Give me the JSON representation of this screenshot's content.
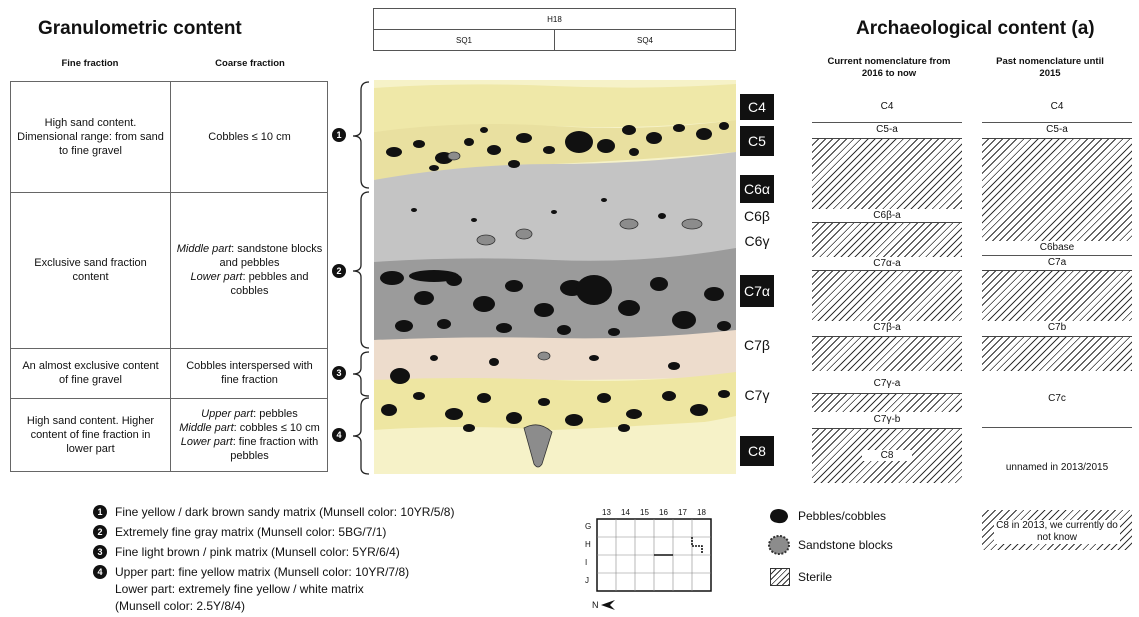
{
  "granulometric": {
    "title": "Granulometric content",
    "col_fine": "Fine fraction",
    "col_coarse": "Coarse fraction",
    "rows": [
      {
        "num": "1",
        "fine": "High sand content. Dimensional range: from sand to fine gravel",
        "coarse": "Cobbles ≤ 10 cm"
      },
      {
        "num": "2",
        "fine": "Exclusive sand fraction content",
        "coarse_parts": [
          {
            "em": "Middle part",
            "text": ": sandstone blocks and pebbles"
          },
          {
            "em": "Lower part",
            "text": ": pebbles and cobbles"
          }
        ]
      },
      {
        "num": "3",
        "fine": "An almost exclusive content of fine gravel",
        "coarse": "Cobbles interspersed with fine fraction"
      },
      {
        "num": "4",
        "fine": "High sand content. Higher content of fine fraction in lower part",
        "coarse_parts": [
          {
            "em": "Upper part",
            "text": ": pebbles"
          },
          {
            "em": "Middle part",
            "text": ": cobbles ≤ 10 cm"
          },
          {
            "em": "Lower part",
            "text": ": fine fraction with pebbles"
          }
        ]
      }
    ]
  },
  "section": {
    "top_label": "H18",
    "sq_left": "SQ1",
    "sq_right": "SQ4",
    "layers": [
      {
        "label": "C4",
        "boxed": true
      },
      {
        "label": "C5",
        "boxed": true
      },
      {
        "label": "C6α",
        "boxed": true
      },
      {
        "label": "C6β",
        "boxed": false
      },
      {
        "label": "C6γ",
        "boxed": false
      },
      {
        "label": "C7α",
        "boxed": true
      },
      {
        "label": "C7β",
        "boxed": false
      },
      {
        "label": "C7γ",
        "boxed": false
      },
      {
        "label": "C8",
        "boxed": true
      }
    ],
    "colors": {
      "yellow": "#efe8a8",
      "gray": "#bfbfbf",
      "pink": "#f2e3d6",
      "pale": "#f6f2c8"
    }
  },
  "archaeological": {
    "title": "Archaeological content (a)",
    "col_current": "Current nomenclature from 2016 to now",
    "col_past": "Past nomenclature until 2015",
    "current": [
      "C4",
      "C5-a",
      "C6β-a",
      "C7α-a",
      "C7β-a",
      "C7γ-a",
      "C7γ-b",
      "C8"
    ],
    "past": [
      "C4",
      "C5-a",
      "C6base",
      "C7a",
      "C7b",
      "C7c",
      "unnamed in 2013/2015",
      "C8 in 2013, we currently do not know"
    ]
  },
  "legend": {
    "matrices": [
      {
        "num": "1",
        "text": "Fine yellow / dark brown sandy matrix (Munsell color: 10YR/5/8)"
      },
      {
        "num": "2",
        "text": "Extremely fine gray matrix (Munsell color: 5BG/7/1)"
      },
      {
        "num": "3",
        "text": "Fine light brown / pink matrix (Munsell color: 5YR/6/4)"
      },
      {
        "num": "4",
        "text": "Upper part: fine yellow matrix (Munsell color: 10YR/7/8)",
        "text2": "Lower part: extremely fine yellow / white matrix",
        "text3": "(Munsell color: 2.5Y/8/4)"
      }
    ],
    "symbols": [
      {
        "icon": "pebble-icon",
        "label": "Pebbles/cobbles"
      },
      {
        "icon": "sandstone-block-icon",
        "label": "Sandstone blocks"
      },
      {
        "icon": "sterile-hatch-icon",
        "label": "Sterile"
      }
    ],
    "grid": {
      "cols": [
        "13",
        "14",
        "15",
        "16",
        "17",
        "18"
      ],
      "rows": [
        "G",
        "H",
        "I",
        "J"
      ],
      "north": "N"
    }
  }
}
